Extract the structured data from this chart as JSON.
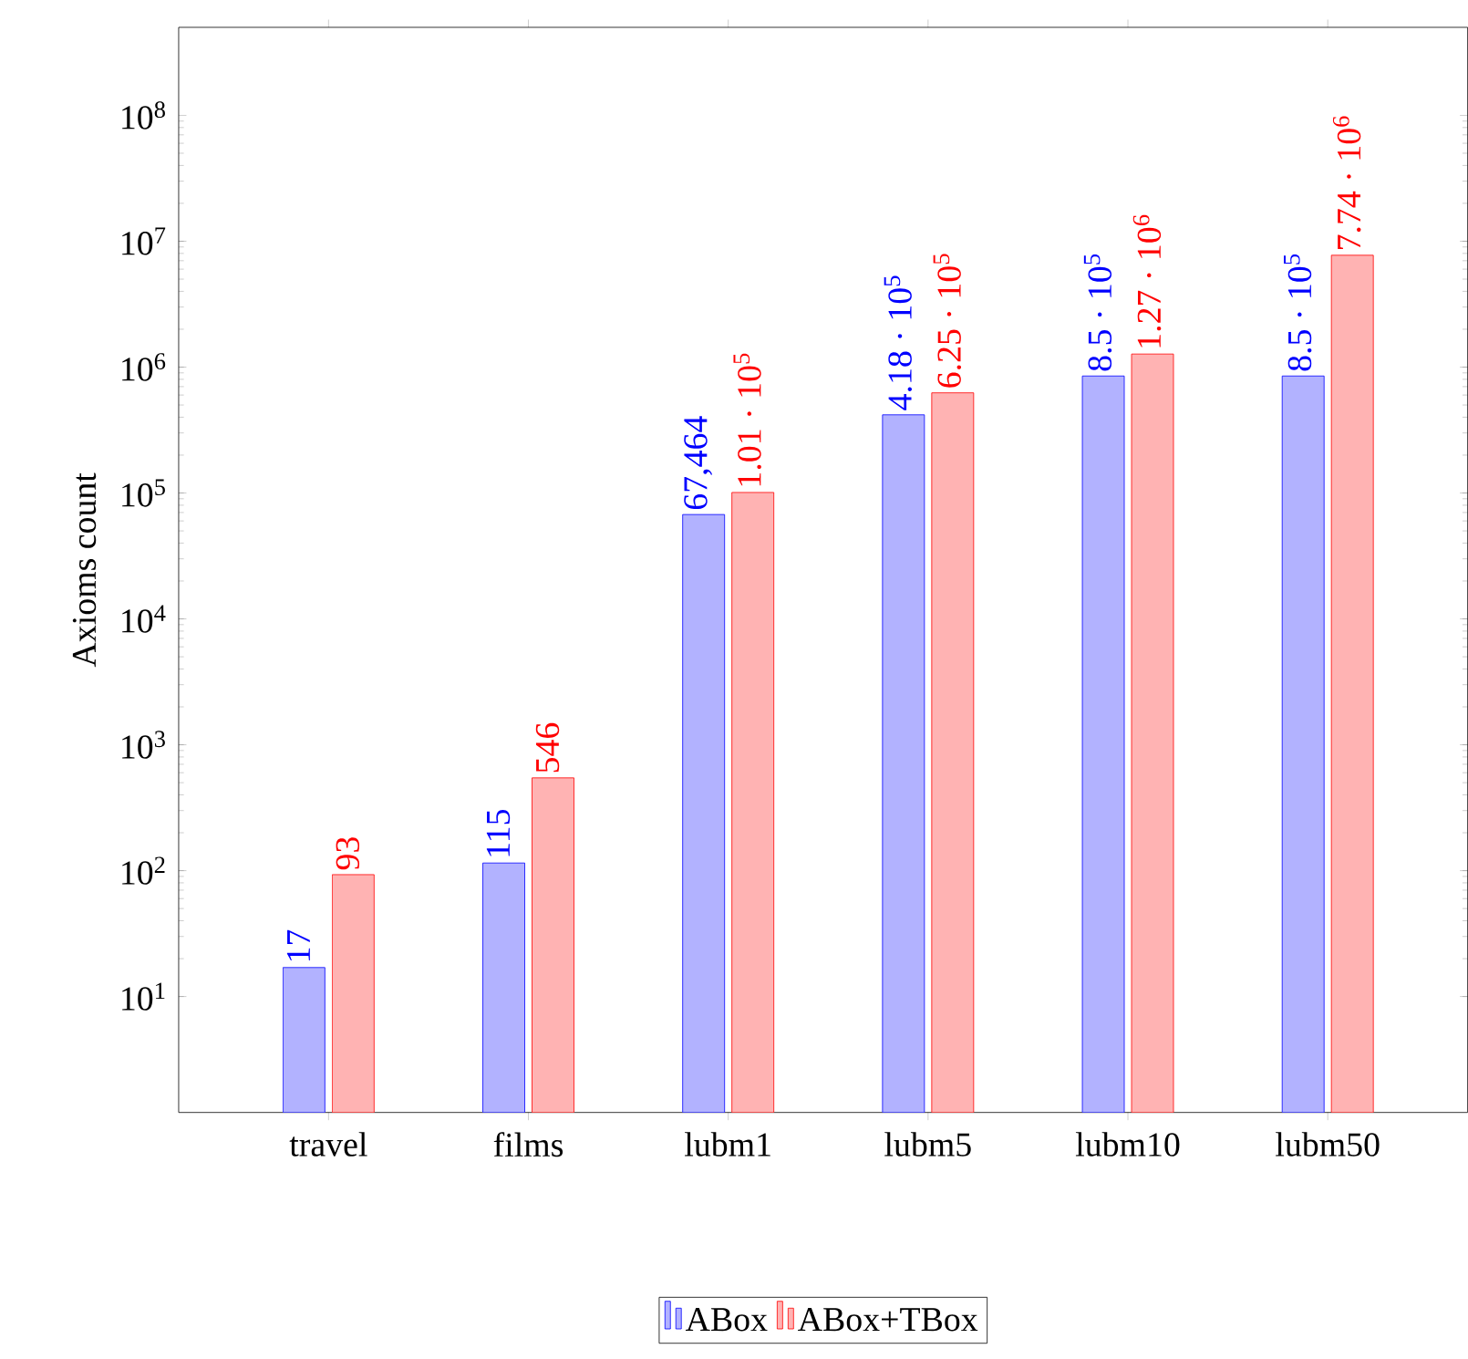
{
  "chart_data": {
    "type": "bar",
    "ylabel": "Axioms count",
    "log": "y",
    "legend": "bottom",
    "categories": [
      "travel",
      "films",
      "lubm1",
      "lubm5",
      "lubm10",
      "lubm50"
    ],
    "ylim": [
      1.2,
      500000000
    ],
    "yticks": [
      {
        "value": 10,
        "label": "10$^{1}$"
      },
      {
        "value": 100,
        "label": "10$^{2}$"
      },
      {
        "value": 1000,
        "label": "10$^{3}$"
      },
      {
        "value": 10000,
        "label": "10$^{4}$"
      },
      {
        "value": 100000,
        "label": "10$^{5}$"
      },
      {
        "value": 1000000,
        "label": "10$^{6}$"
      },
      {
        "value": 10000000,
        "label": "10$^{7}$"
      },
      {
        "value": 100000000,
        "label": "10$^{8}$"
      }
    ],
    "series": [
      {
        "name": "ABox",
        "color": "#b2b2ff",
        "values": [
          17,
          115,
          67464,
          418000,
          850000,
          850000
        ],
        "value_labels": [
          "17",
          "115",
          "67,464",
          "4.18 · 10$^{5}$",
          "8.5 · 10$^{5}$",
          "8.5 · 10$^{5}$"
        ]
      },
      {
        "name": "ABox+TBox",
        "color": "#ffb3b3",
        "values": [
          93,
          546,
          101000,
          625000,
          1270000,
          7740000
        ],
        "value_labels": [
          "93",
          "546",
          "1.01 · 10$^{5}$",
          "6.25 · 10$^{5}$",
          "1.27 · 10$^{6}$",
          "7.74 · 10$^{6}$"
        ]
      }
    ]
  }
}
